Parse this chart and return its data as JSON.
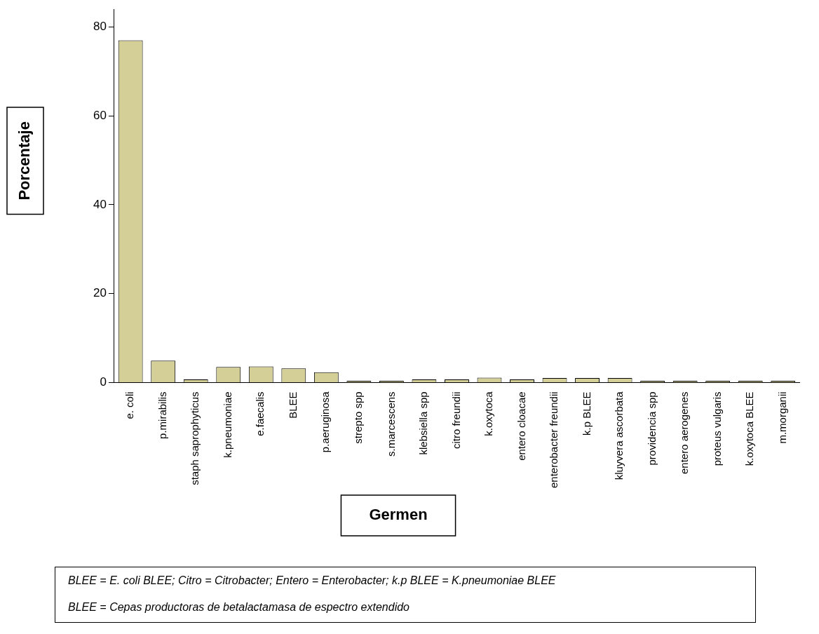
{
  "chart_data": {
    "type": "bar",
    "xlabel": "Germen",
    "ylabel": "Porcentaje",
    "categories": [
      "e. coli",
      "p.mirabilis",
      "staph saprophyticus",
      "k.pneumoniae",
      "e.faecalis",
      "BLEE",
      "p.aeruginosa",
      "strepto spp",
      "s.marcescens",
      "klebsiella spp",
      "citro freundii",
      "k.oxytoca",
      "entero cloacae",
      "enterobacter freundii",
      "k.p BLEE",
      "kluyvera ascorbata",
      "providencia spp",
      "entero aerogenes",
      "proteus vulgaris",
      "k.oxytoca BLEE",
      "m.morganii"
    ],
    "values": [
      77,
      4.9,
      0.7,
      3.5,
      3.6,
      3.2,
      2.3,
      0.4,
      0.4,
      0.7,
      0.7,
      1.1,
      0.7,
      1,
      1,
      1,
      0.4,
      0.4,
      0.4,
      0.4,
      0.4
    ],
    "color": "#d3cf97",
    "ylim": [
      0,
      84
    ],
    "yticks": [
      0,
      20,
      40,
      60,
      80
    ],
    "grid": false,
    "legend": false,
    "annotations": [
      "BLEE = E. coli BLEE; Citro = Citrobacter;  Entero = Enterobacter;  k.p BLEE = K.pneumoniae BLEE",
      "BLEE = Cepas productoras de betalactamasa de espectro extendido"
    ]
  }
}
